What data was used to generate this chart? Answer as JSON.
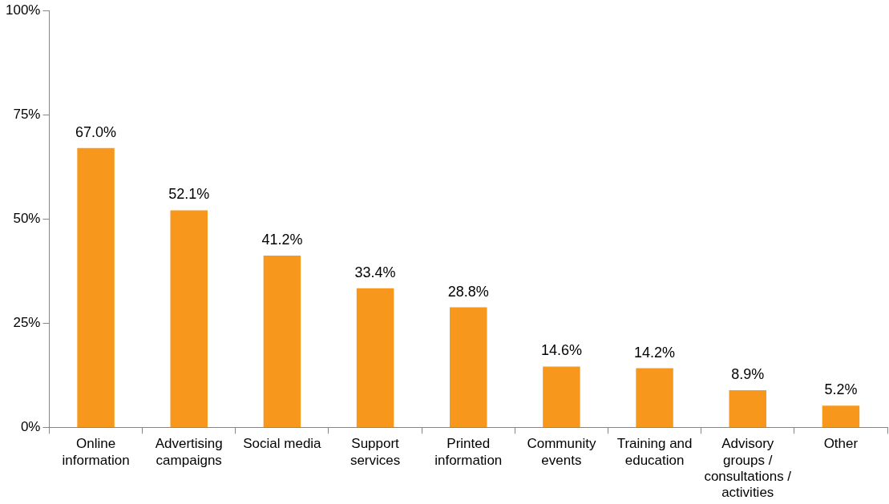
{
  "chart_data": {
    "type": "bar",
    "categories": [
      "Online information",
      "Advertising campaigns",
      "Social media",
      "Support services",
      "Printed information",
      "Community events",
      "Training and education",
      "Advisory groups / consultations / activities",
      "Other"
    ],
    "values": [
      67.0,
      52.1,
      41.2,
      33.4,
      28.8,
      14.6,
      14.2,
      8.9,
      5.2
    ],
    "value_labels": [
      "67.0%",
      "52.1%",
      "41.2%",
      "33.4%",
      "28.8%",
      "14.6%",
      "14.2%",
      "8.9%",
      "5.2%"
    ],
    "color": "#f7981d",
    "ylim": [
      0,
      100
    ],
    "yticks": [
      {
        "value": 0,
        "label": "0%"
      },
      {
        "value": 25,
        "label": "25%"
      },
      {
        "value": 50,
        "label": "50%"
      },
      {
        "value": 75,
        "label": "75%"
      },
      {
        "value": 100,
        "label": "100%"
      }
    ],
    "grid": false,
    "legend": false
  }
}
